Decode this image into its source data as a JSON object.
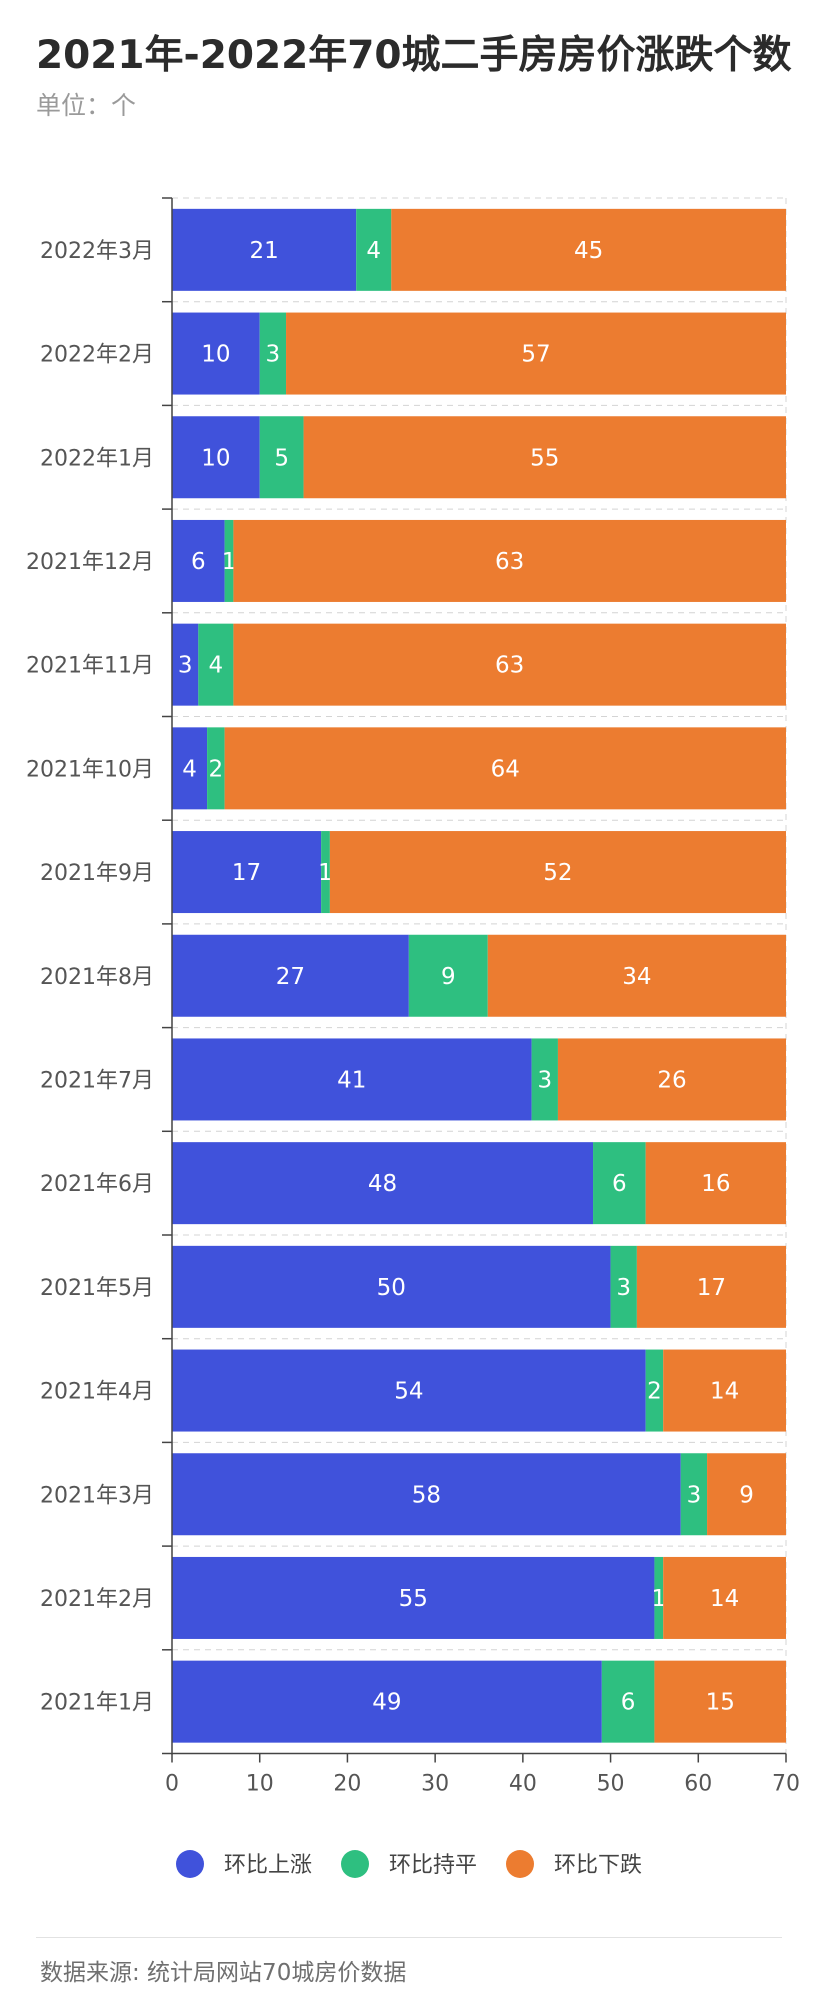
{
  "title": "2021年-2022年70城二手房房价涨跌个数",
  "subtitle": "单位：个",
  "source": "数据来源: 统计局网站70城房价数据",
  "colors": {
    "up": "#4052db",
    "flat": "#2ebf80",
    "down": "#ec7c30"
  },
  "chart_data": {
    "type": "bar",
    "orientation": "horizontal",
    "stacked": true,
    "categories": [
      "2022年3月",
      "2022年2月",
      "2022年1月",
      "2021年12月",
      "2021年11月",
      "2021年10月",
      "2021年9月",
      "2021年8月",
      "2021年7月",
      "2021年6月",
      "2021年5月",
      "2021年4月",
      "2021年3月",
      "2021年2月",
      "2021年1月"
    ],
    "series": [
      {
        "name": "环比上涨",
        "values": [
          21,
          10,
          10,
          6,
          3,
          4,
          17,
          27,
          41,
          48,
          50,
          54,
          58,
          55,
          49
        ]
      },
      {
        "name": "环比持平",
        "values": [
          4,
          3,
          5,
          1,
          4,
          2,
          1,
          9,
          3,
          6,
          3,
          2,
          3,
          1,
          6
        ]
      },
      {
        "name": "环比下跌",
        "values": [
          45,
          57,
          55,
          63,
          63,
          64,
          52,
          34,
          26,
          16,
          17,
          14,
          9,
          14,
          15
        ]
      }
    ],
    "xlim": [
      0,
      70
    ],
    "xticks": [
      0,
      10,
      20,
      30,
      40,
      50,
      60,
      70
    ],
    "legend_position": "bottom",
    "grid": "dashed separators between categories"
  }
}
